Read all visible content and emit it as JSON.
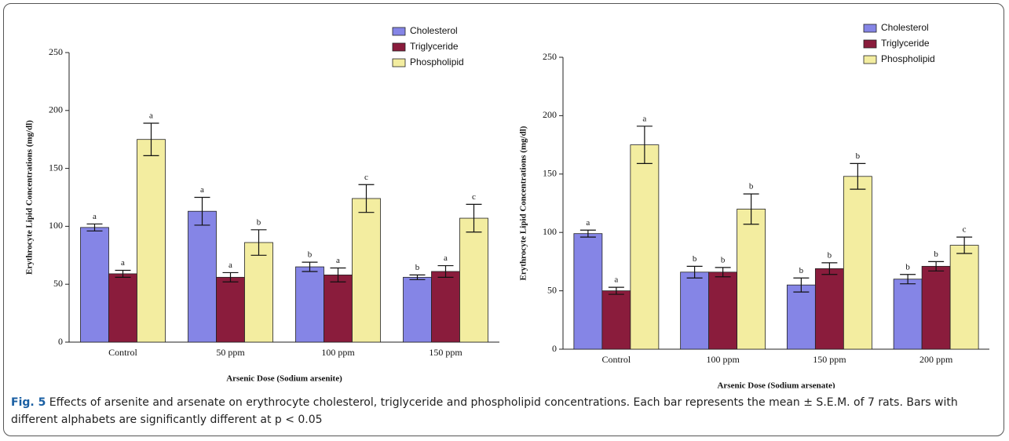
{
  "chart_data": [
    {
      "type": "bar",
      "ylabel": "Erythrocyte Lipid Concentrations (mg/dl)",
      "xlabel": "Arsenic Dose (Sodium arsenite)",
      "categories": [
        "Control",
        "50 ppm",
        "100 ppm",
        "150 ppm"
      ],
      "ylim": [
        0,
        250
      ],
      "yticks": [
        0,
        50,
        100,
        150,
        200,
        250
      ],
      "series": [
        {
          "name": "Cholesterol",
          "color": "#8585e6",
          "values": [
            99,
            113,
            65,
            56
          ],
          "errors": [
            3,
            12,
            4,
            2
          ],
          "letters": [
            "a",
            "a",
            "b",
            "b"
          ]
        },
        {
          "name": "Triglyceride",
          "color": "#8a1c3c",
          "values": [
            59,
            56,
            58,
            61
          ],
          "errors": [
            3,
            4,
            6,
            5
          ],
          "letters": [
            "a",
            "a",
            "a",
            "a"
          ]
        },
        {
          "name": "Phospholipid",
          "color": "#f3eda0",
          "values": [
            175,
            86,
            124,
            107
          ],
          "errors": [
            14,
            11,
            12,
            12
          ],
          "letters": [
            "a",
            "b",
            "c",
            "c"
          ]
        }
      ]
    },
    {
      "type": "bar",
      "ylabel": "Erythrocyte Lipid Concentrations (mg/dl)",
      "xlabel": "Arsenic Dose (Sodium arsenate)",
      "categories": [
        "Control",
        "100 ppm",
        "150 ppm",
        "200 ppm"
      ],
      "ylim": [
        0,
        250
      ],
      "yticks": [
        0,
        50,
        100,
        150,
        200,
        250
      ],
      "series": [
        {
          "name": "Cholesterol",
          "color": "#8585e6",
          "values": [
            99,
            66,
            55,
            60
          ],
          "errors": [
            3,
            5,
            6,
            4
          ],
          "letters": [
            "a",
            "b",
            "b",
            "b"
          ]
        },
        {
          "name": "Triglyceride",
          "color": "#8a1c3c",
          "values": [
            50,
            66,
            69,
            71
          ],
          "errors": [
            3,
            4,
            5,
            4
          ],
          "letters": [
            "a",
            "b",
            "b",
            "b"
          ]
        },
        {
          "name": "Phospholipid",
          "color": "#f3eda0",
          "values": [
            175,
            120,
            148,
            89
          ],
          "errors": [
            16,
            13,
            11,
            7
          ],
          "letters": [
            "a",
            "b",
            "b",
            "c"
          ]
        }
      ]
    }
  ],
  "caption": {
    "label": "Fig. 5",
    "text": "Effects of arsenite and arsenate on erythrocyte cholesterol, triglyceride and phospholipid concentrations. Each bar represents the mean ± S.E.M. of 7 rats. Bars with different alphabets are significantly different at p < 0.05"
  }
}
